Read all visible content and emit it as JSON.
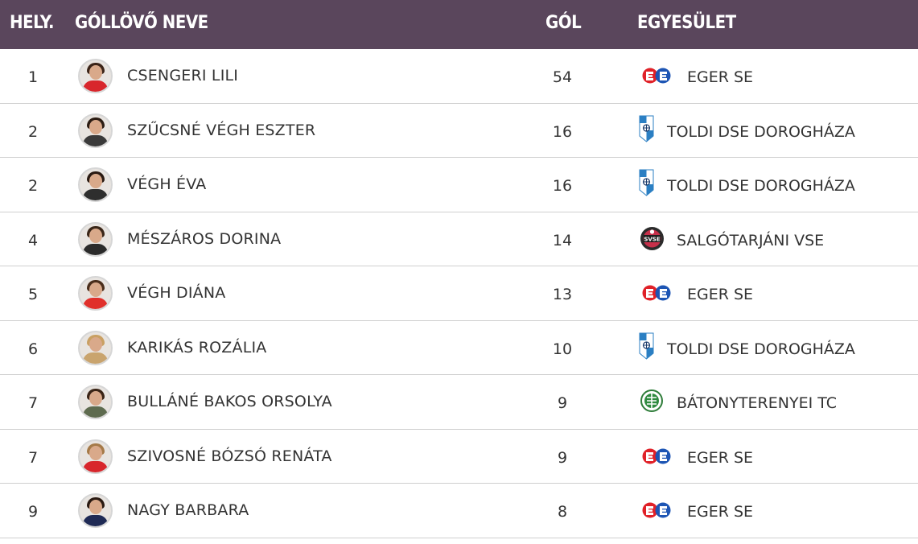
{
  "header": {
    "rank": "HELY.",
    "name": "GÓLLÖVŐ NEVE",
    "goals": "GÓL",
    "club": "EGYESÜLET"
  },
  "rows": [
    {
      "rank": "1",
      "name": "CSENGERI LILI",
      "goals": "54",
      "club": "EGER SE",
      "logo": "eger-se-logo",
      "shirt": "#d8262c",
      "hair": "#3b2418"
    },
    {
      "rank": "2",
      "name": "SZŰCSNÉ VÉGH ESZTER",
      "goals": "16",
      "club": "TOLDI DSE DOROGHÁZA",
      "logo": "toldi-dse-logo",
      "shirt": "#3a3a3a",
      "hair": "#2c1d14"
    },
    {
      "rank": "2",
      "name": "VÉGH ÉVA",
      "goals": "16",
      "club": "TOLDI DSE DOROGHÁZA",
      "logo": "toldi-dse-logo",
      "shirt": "#2e2e2e",
      "hair": "#2a1a12"
    },
    {
      "rank": "4",
      "name": "MÉSZÁROS DORINA",
      "goals": "14",
      "club": "SALGÓTARJÁNI VSE",
      "logo": "salgotarjani-vse-logo",
      "shirt": "#2b2b2b",
      "hair": "#3a2618"
    },
    {
      "rank": "5",
      "name": "VÉGH DIÁNA",
      "goals": "13",
      "club": "EGER SE",
      "logo": "eger-se-logo",
      "shirt": "#e0302b",
      "hair": "#4a2e1c"
    },
    {
      "rank": "6",
      "name": "KARIKÁS ROZÁLIA",
      "goals": "10",
      "club": "TOLDI DSE DOROGHÁZA",
      "logo": "toldi-dse-logo",
      "shirt": "#c9a46e",
      "hair": "#c9a063"
    },
    {
      "rank": "7",
      "name": "BULLÁNÉ BAKOS ORSOLYA",
      "goals": "9",
      "club": "BÁTONYTERENYEI TC",
      "logo": "batonyterenyei-tc-logo",
      "shirt": "#5e6b4f",
      "hair": "#3a2416"
    },
    {
      "rank": "7",
      "name": "SZIVOSNÉ BÓZSÓ RENÁTA",
      "goals": "9",
      "club": "EGER SE",
      "logo": "eger-se-logo",
      "shirt": "#d8262c",
      "hair": "#a57a48"
    },
    {
      "rank": "9",
      "name": "NAGY BARBARA",
      "goals": "8",
      "club": "EGER SE",
      "logo": "eger-se-logo",
      "shirt": "#1f2a55",
      "hair": "#2a1a12"
    }
  ]
}
